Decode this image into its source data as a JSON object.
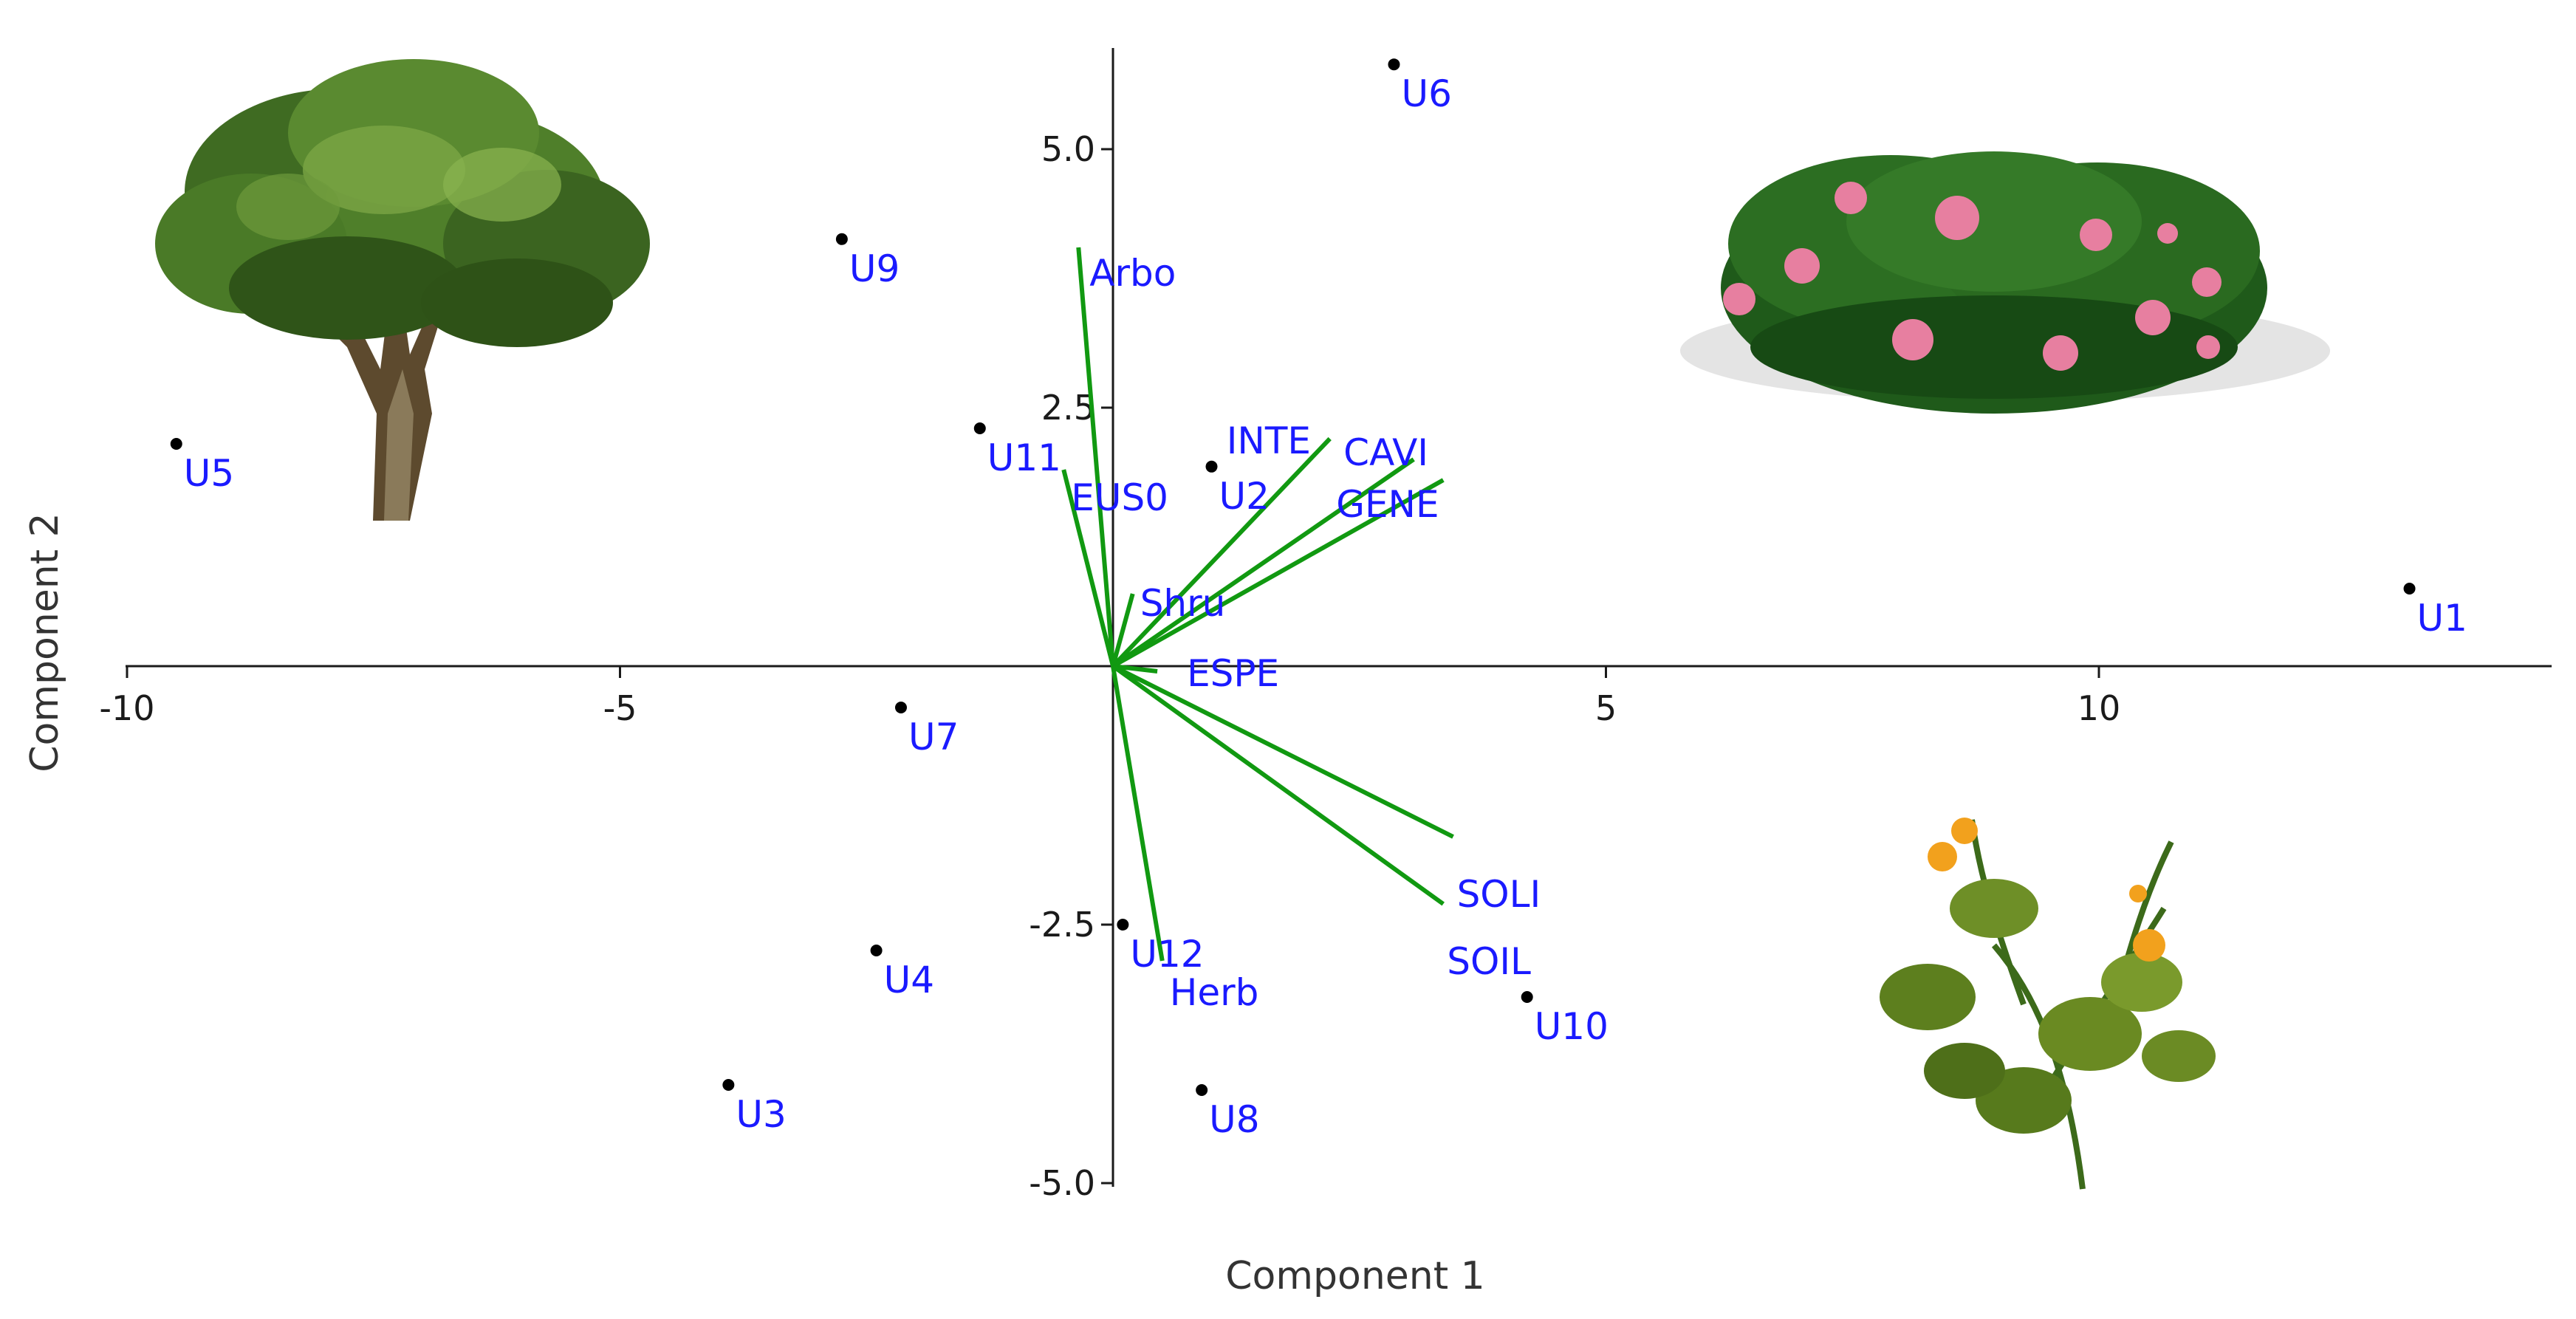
{
  "chart_data": {
    "type": "scatter",
    "subtype": "biplot",
    "title": "",
    "xlabel": "Component 1",
    "ylabel": "Component 2",
    "xlim": [
      -10,
      14.6
    ],
    "ylim": [
      -5.2,
      6.1
    ],
    "x_ticks": [
      -10,
      -5,
      5,
      10
    ],
    "x_tick_labels": [
      "-10",
      "-5",
      "5",
      "10"
    ],
    "y_ticks": [
      5,
      2.5,
      -2.5,
      -5
    ],
    "y_tick_labels": [
      "5.0",
      "2.5",
      "-2.5",
      "-5.0"
    ],
    "grid": false,
    "colors": {
      "points": "#000000",
      "labels": "#1a1aff",
      "vectors": "#119911"
    },
    "points": [
      {
        "label": "U1",
        "x": 13.15,
        "y": 0.75
      },
      {
        "label": "U2",
        "x": 1.0,
        "y": 1.93
      },
      {
        "label": "U3",
        "x": -3.9,
        "y": -4.05
      },
      {
        "label": "U4",
        "x": -2.4,
        "y": -2.75
      },
      {
        "label": "U5",
        "x": -9.5,
        "y": 2.15
      },
      {
        "label": "U6",
        "x": 2.85,
        "y": 5.82
      },
      {
        "label": "U7",
        "x": -2.15,
        "y": -0.4
      },
      {
        "label": "U8",
        "x": 0.9,
        "y": -4.1
      },
      {
        "label": "U9",
        "x": -2.75,
        "y": 4.13
      },
      {
        "label": "U10",
        "x": 4.2,
        "y": -3.2
      },
      {
        "label": "U11",
        "x": -1.35,
        "y": 2.3
      },
      {
        "label": "U12",
        "x": 0.1,
        "y": -2.5
      }
    ],
    "vectors": [
      {
        "label": "Arbo",
        "x": -0.35,
        "y": 4.05
      },
      {
        "label": "EUS0",
        "x": -0.5,
        "y": 1.9
      },
      {
        "label": "INTE",
        "x": 2.2,
        "y": 2.2
      },
      {
        "label": "CAVI",
        "x": 3.05,
        "y": 2.0
      },
      {
        "label": "GENE",
        "x": 3.35,
        "y": 1.8
      },
      {
        "label": "Shru",
        "x": 0.2,
        "y": 0.7
      },
      {
        "label": "ESPE",
        "x": 0.45,
        "y": -0.05
      },
      {
        "label": "SOLI",
        "x": 3.45,
        "y": -1.65
      },
      {
        "label": "SOIL",
        "x": 3.35,
        "y": -2.3
      },
      {
        "label": "Herb",
        "x": 0.5,
        "y": -2.85
      }
    ],
    "pictures": [
      "tree-illustration",
      "flowering-shrub-illustration",
      "herb-illustration"
    ]
  }
}
